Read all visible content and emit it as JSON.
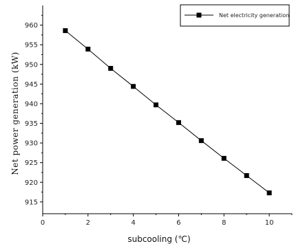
{
  "chart_data": {
    "type": "line",
    "title": "",
    "xlabel": "subcooling (℃)",
    "ylabel": "Net power generation (kW)",
    "xlim": [
      0,
      11
    ],
    "ylim": [
      912,
      965
    ],
    "xticks": [
      0,
      2,
      4,
      6,
      8,
      10
    ],
    "yticks": [
      915,
      920,
      925,
      930,
      935,
      940,
      945,
      950,
      955,
      960
    ],
    "grid": false,
    "legend_position": "top-right",
    "series": [
      {
        "name": "Net electricity generation",
        "x": [
          1,
          2,
          3,
          4,
          5,
          6,
          7,
          8,
          9,
          10
        ],
        "y": [
          958.6,
          953.9,
          949.0,
          944.4,
          939.7,
          935.2,
          930.6,
          926.1,
          921.7,
          917.3
        ],
        "color": "#000000",
        "marker": "square"
      }
    ]
  }
}
